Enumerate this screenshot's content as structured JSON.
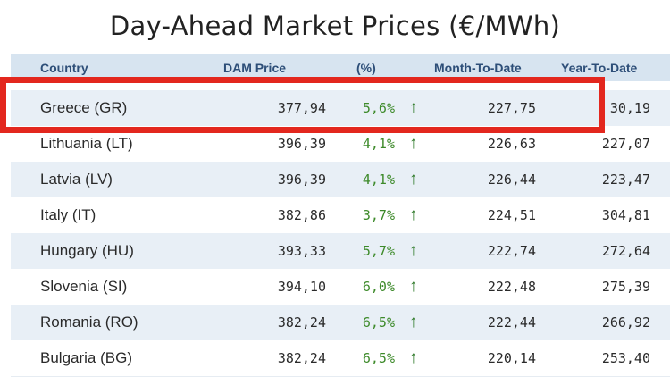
{
  "title": "Day-Ahead Market Prices (€/MWh)",
  "columns": {
    "country": "Country",
    "price": "DAM Price",
    "pct": "(%)",
    "mtd": "Month-To-Date",
    "ytd": "Year-To-Date"
  },
  "arrow_glyph": "↑",
  "rows": [
    {
      "country": "Greece (GR)",
      "price": "377,94",
      "pct": "5,6%",
      "mtd": "227,75",
      "ytd": "30,19"
    },
    {
      "country": "Lithuania (LT)",
      "price": "396,39",
      "pct": "4,1%",
      "mtd": "226,63",
      "ytd": "227,07"
    },
    {
      "country": "Latvia (LV)",
      "price": "396,39",
      "pct": "4,1%",
      "mtd": "226,44",
      "ytd": "223,47"
    },
    {
      "country": "Italy (IT)",
      "price": "382,86",
      "pct": "3,7%",
      "mtd": "224,51",
      "ytd": "304,81"
    },
    {
      "country": "Hungary (HU)",
      "price": "393,33",
      "pct": "5,7%",
      "mtd": "222,74",
      "ytd": "272,64"
    },
    {
      "country": "Slovenia (SI)",
      "price": "394,10",
      "pct": "6,0%",
      "mtd": "222,48",
      "ytd": "275,39"
    },
    {
      "country": "Romania (RO)",
      "price": "382,24",
      "pct": "6,5%",
      "mtd": "222,44",
      "ytd": "266,92"
    },
    {
      "country": "Bulgaria (BG)",
      "price": "382,24",
      "pct": "6,5%",
      "mtd": "220,14",
      "ytd": "253,40"
    }
  ],
  "colors": {
    "header_bg": "#d7e4f0",
    "header_text": "#2d4e78",
    "alt_row": "#e8eff6",
    "positive": "#3d8a2a",
    "highlight": "#e3271e"
  }
}
